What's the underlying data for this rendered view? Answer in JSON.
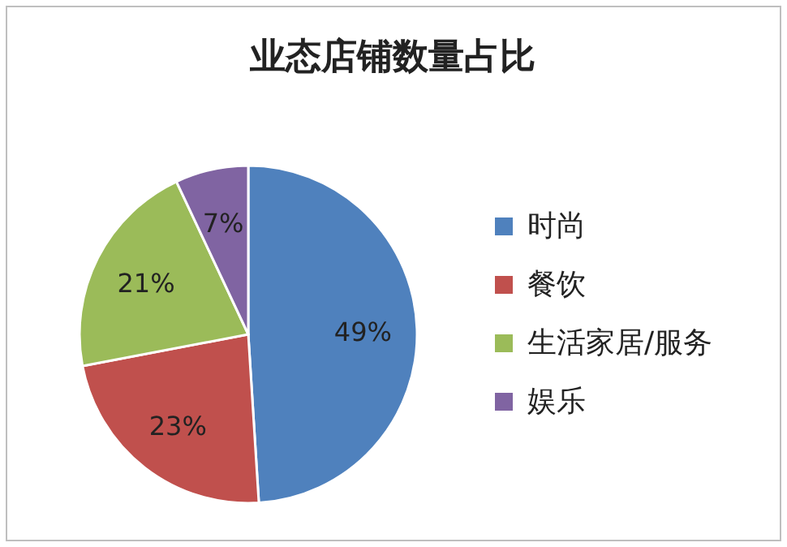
{
  "chart_data": {
    "type": "pie",
    "title": "业态店铺数量占比",
    "categories": [
      "时尚",
      "餐饮",
      "生活家居/服务",
      "娱乐"
    ],
    "values": [
      49,
      23,
      21,
      7
    ],
    "colors": [
      "#4f81bd",
      "#c0504d",
      "#9bbb59",
      "#8064a2"
    ],
    "value_labels": [
      "49%",
      "23%",
      "21%",
      "7%"
    ],
    "legend": "right"
  }
}
